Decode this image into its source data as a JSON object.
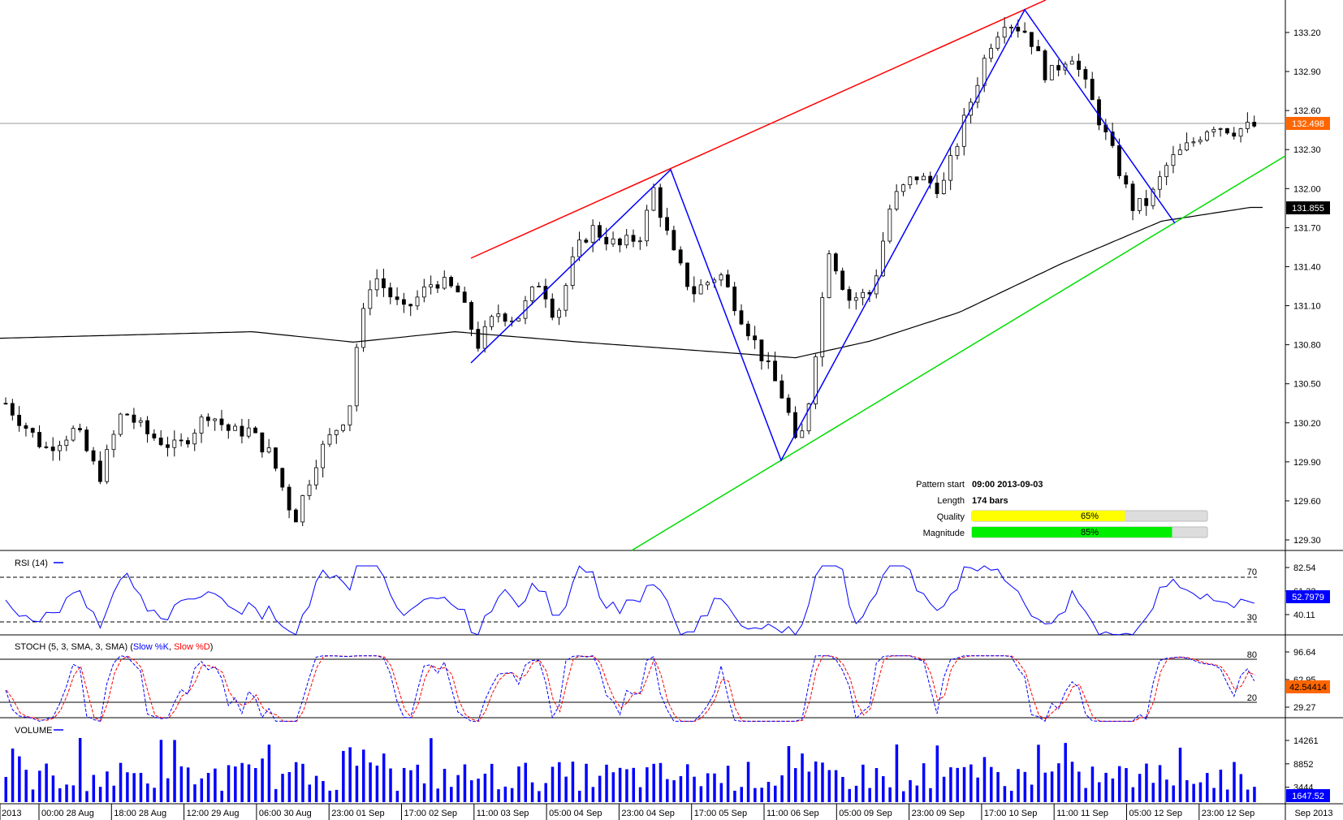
{
  "chart_data": {
    "type": "candlestick",
    "price_panel": {
      "y_axis_ticks": [
        "133.20",
        "132.90",
        "132.60",
        "132.30",
        "132.00",
        "131.70",
        "131.40",
        "131.10",
        "130.80",
        "130.50",
        "130.20",
        "129.90",
        "129.60",
        "129.30"
      ],
      "ylim": [
        129.2,
        133.4
      ],
      "current_price": "132.498",
      "ma_label": "131.855",
      "ma_value": 131.855,
      "pattern": {
        "start_price": 130.66,
        "peak1": 132.16,
        "trough": 129.94,
        "peak2": 133.41,
        "trough2": 131.75
      }
    },
    "info_box": {
      "pattern_start_label": "Pattern start",
      "pattern_start_value": "09:00 2013-09-03",
      "length_label": "Length",
      "length_value": "174 bars",
      "quality_label": "Quality",
      "quality_value": "65%",
      "quality_fraction": 0.65,
      "magnitude_label": "Magnitude",
      "magnitude_value": "85%",
      "magnitude_fraction": 0.85
    },
    "rsi_panel": {
      "title": "RSI (14)",
      "y_axis_ticks": [
        "82.54",
        "61.32",
        "40.11"
      ],
      "current": "52.7979",
      "level_high": "70",
      "level_low": "30"
    },
    "stoch_panel": {
      "title": "STOCH (5, 3, SMA, 3, SMA)",
      "k_label": "Slow %K",
      "d_label": "Slow %D",
      "y_axis_ticks": [
        "96.64",
        "62.95",
        "29.27"
      ],
      "current": "42.54414",
      "level_high": "80",
      "level_low": "20"
    },
    "volume_panel": {
      "title": "VOLUME",
      "y_axis_ticks": [
        "14261",
        "8852",
        "3444"
      ],
      "current": "1647.52"
    },
    "x_axis_labels": [
      "2013",
      "00:00 28 Aug",
      "18:00 28 Aug",
      "12:00 29 Aug",
      "06:00 30 Aug",
      "23:00 01 Sep",
      "17:00 02 Sep",
      "11:00 03 Sep",
      "05:00 04 Sep",
      "23:00 04 Sep",
      "17:00 05 Sep",
      "11:00 06 Sep",
      "05:00 09 Sep",
      "23:00 09 Sep",
      "17:00 10 Sep",
      "11:00 11 Sep",
      "05:00 12 Sep",
      "23:00 12 Sep"
    ],
    "x_axis_right": "Sep 2013",
    "colors": {
      "up": "#ffffff",
      "down": "#000000",
      "resistance": "#ff0000",
      "support": "#00dd00",
      "pattern": "#0000ff",
      "ma": "#000000",
      "current_bg": "#ff6600",
      "ma_bg": "#000000",
      "quality": "#ffff00",
      "magnitude": "#00ee00",
      "rsi": "#0000ff",
      "stoch_k": "#0000ff",
      "stoch_d": "#ff0000",
      "volume": "#0000ff"
    }
  }
}
